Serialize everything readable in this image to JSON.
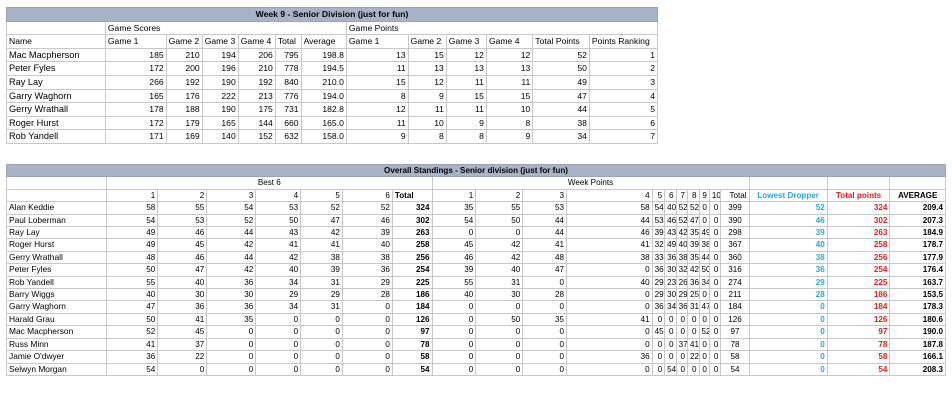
{
  "week": {
    "title": "Week 9 - Senior Division (just for fun)",
    "group_game_scores": "Game Scores",
    "group_game_points": "Game Points",
    "headers": [
      "Name",
      "Game 1",
      "Game 2",
      "Game 3",
      "Game 4",
      "Total",
      "Average",
      "Game 1",
      "Game 2",
      "Game 3",
      "Game 4",
      "Total Points",
      "Points Ranking"
    ],
    "rows": [
      [
        "Mac Macpherson",
        "185",
        "210",
        "194",
        "206",
        "795",
        "198.8",
        "13",
        "15",
        "12",
        "12",
        "52",
        "1"
      ],
      [
        "Peter Fyles",
        "172",
        "200",
        "196",
        "210",
        "778",
        "194.5",
        "11",
        "13",
        "13",
        "13",
        "50",
        "2"
      ],
      [
        "Ray Lay",
        "266",
        "192",
        "190",
        "192",
        "840",
        "210.0",
        "15",
        "12",
        "11",
        "11",
        "49",
        "3"
      ],
      [
        "Garry Waghorn",
        "165",
        "176",
        "222",
        "213",
        "776",
        "194.0",
        "8",
        "9",
        "15",
        "15",
        "47",
        "4"
      ],
      [
        "Gerry Wrathall",
        "178",
        "188",
        "190",
        "175",
        "731",
        "182.8",
        "12",
        "11",
        "11",
        "10",
        "44",
        "5"
      ],
      [
        "Roger Hurst",
        "172",
        "179",
        "165",
        "144",
        "660",
        "165.0",
        "11",
        "10",
        "9",
        "8",
        "38",
        "6"
      ],
      [
        "Rob Yandell",
        "171",
        "169",
        "140",
        "152",
        "632",
        "158.0",
        "9",
        "8",
        "8",
        "9",
        "34",
        "7"
      ]
    ]
  },
  "overall": {
    "title": "Overall Standings  - Senior division (just for fun)",
    "group_best6": "Best 6",
    "group_week_points": "Week Points",
    "headers": [
      "",
      "1",
      "2",
      "3",
      "4",
      "5",
      "6",
      "Total",
      "1",
      "2",
      "3",
      "4",
      "5",
      "6",
      "7",
      "8",
      "9",
      "10",
      "Total",
      "Lowest Dropper",
      "Total points",
      "AVERAGE"
    ],
    "rows": [
      [
        "Alan Keddie",
        "58",
        "55",
        "54",
        "53",
        "52",
        "52",
        "324",
        "35",
        "55",
        "53",
        "58",
        "54",
        "40",
        "52",
        "52",
        "0",
        "0",
        "399",
        "52",
        "324",
        "209.4"
      ],
      [
        "Paul Loberman",
        "54",
        "53",
        "52",
        "50",
        "47",
        "46",
        "302",
        "54",
        "50",
        "44",
        "44",
        "53",
        "46",
        "52",
        "47",
        "0",
        "0",
        "390",
        "46",
        "302",
        "207.3"
      ],
      [
        "Ray Lay",
        "49",
        "46",
        "44",
        "43",
        "42",
        "39",
        "263",
        "0",
        "0",
        "44",
        "46",
        "39",
        "43",
        "42",
        "35",
        "49",
        "0",
        "298",
        "39",
        "263",
        "184.9"
      ],
      [
        "Roger Hurst",
        "49",
        "45",
        "42",
        "41",
        "41",
        "40",
        "258",
        "45",
        "42",
        "41",
        "41",
        "32",
        "49",
        "40",
        "39",
        "38",
        "0",
        "367",
        "40",
        "258",
        "178.7"
      ],
      [
        "Gerry Wrathall",
        "48",
        "46",
        "44",
        "42",
        "38",
        "38",
        "256",
        "46",
        "42",
        "48",
        "38",
        "33",
        "36",
        "38",
        "35",
        "44",
        "0",
        "360",
        "38",
        "256",
        "177.9"
      ],
      [
        "Peter Fyles",
        "50",
        "47",
        "42",
        "40",
        "39",
        "36",
        "254",
        "39",
        "40",
        "47",
        "0",
        "36",
        "30",
        "32",
        "42",
        "50",
        "0",
        "316",
        "36",
        "254",
        "176.4"
      ],
      [
        "Rob Yandell",
        "55",
        "40",
        "36",
        "34",
        "31",
        "29",
        "225",
        "55",
        "31",
        "0",
        "40",
        "29",
        "23",
        "26",
        "36",
        "34",
        "0",
        "274",
        "29",
        "225",
        "163.7"
      ],
      [
        "Barry Wiggs",
        "40",
        "30",
        "30",
        "29",
        "29",
        "28",
        "186",
        "40",
        "30",
        "28",
        "0",
        "29",
        "30",
        "29",
        "25",
        "0",
        "0",
        "211",
        "28",
        "186",
        "153.5"
      ],
      [
        "Garry Waghorn",
        "47",
        "36",
        "36",
        "34",
        "31",
        "0",
        "184",
        "0",
        "0",
        "0",
        "0",
        "36",
        "34",
        "36",
        "31",
        "47",
        "0",
        "184",
        "0",
        "184",
        "178.3"
      ],
      [
        "Harald Grau",
        "50",
        "41",
        "35",
        "0",
        "0",
        "0",
        "126",
        "0",
        "50",
        "35",
        "41",
        "0",
        "0",
        "0",
        "0",
        "0",
        "0",
        "126",
        "0",
        "126",
        "180.6"
      ],
      [
        "Mac Macpherson",
        "52",
        "45",
        "0",
        "0",
        "0",
        "0",
        "97",
        "0",
        "0",
        "0",
        "0",
        "45",
        "0",
        "0",
        "0",
        "52",
        "0",
        "97",
        "0",
        "97",
        "190.0"
      ],
      [
        "Russ Minn",
        "41",
        "37",
        "0",
        "0",
        "0",
        "0",
        "78",
        "0",
        "0",
        "0",
        "0",
        "0",
        "0",
        "37",
        "41",
        "0",
        "0",
        "78",
        "0",
        "78",
        "187.8"
      ],
      [
        "Jamie O'dwyer",
        "36",
        "22",
        "0",
        "0",
        "0",
        "0",
        "58",
        "0",
        "0",
        "0",
        "36",
        "0",
        "0",
        "0",
        "22",
        "0",
        "0",
        "58",
        "0",
        "58",
        "166.1"
      ],
      [
        "Selwyn Morgan",
        "54",
        "0",
        "0",
        "0",
        "0",
        "0",
        "54",
        "0",
        "0",
        "0",
        "0",
        "0",
        "54",
        "0",
        "0",
        "0",
        "0",
        "54",
        "0",
        "54",
        "208.3"
      ]
    ]
  }
}
